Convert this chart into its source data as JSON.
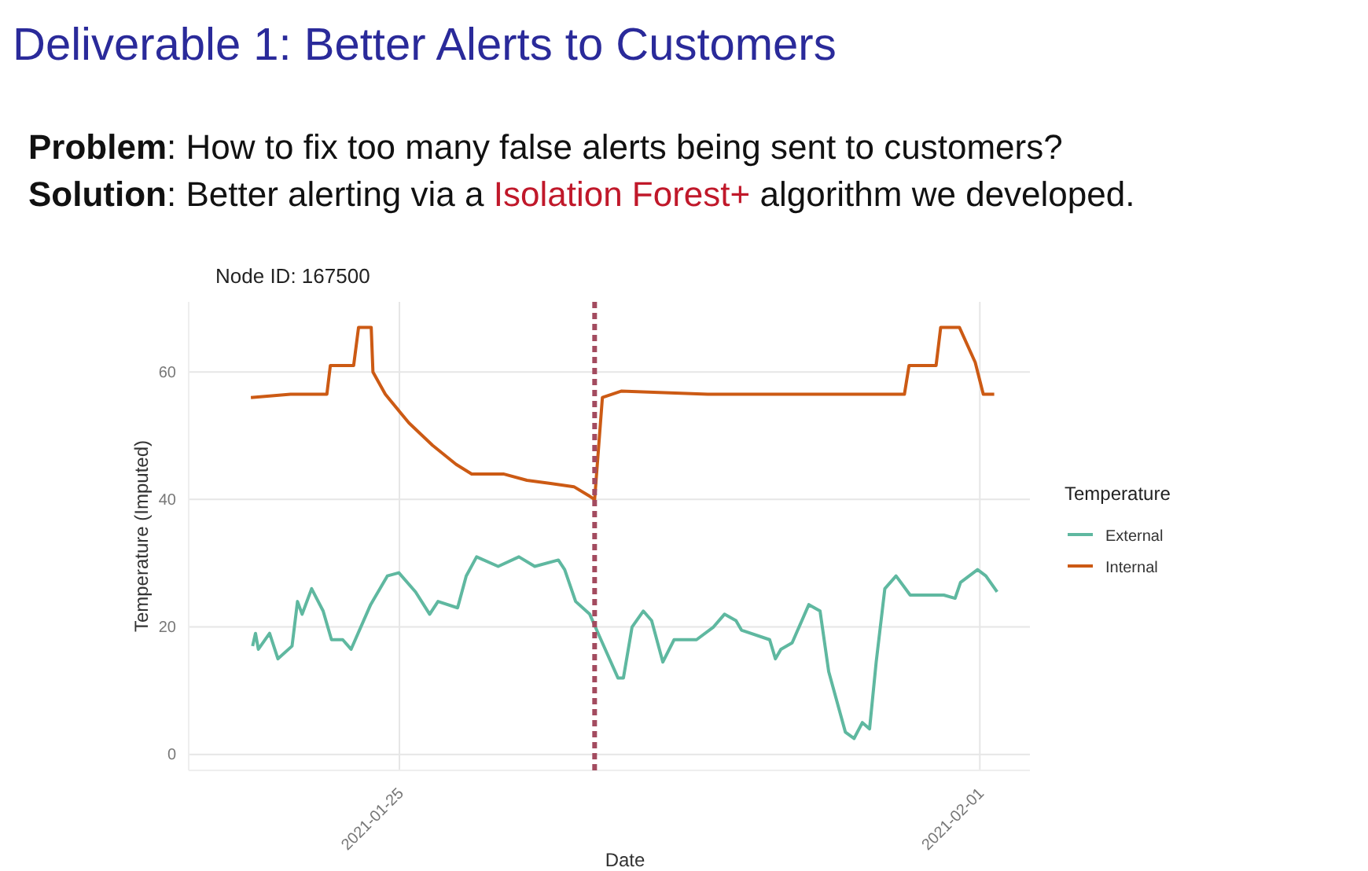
{
  "chart_data": {
    "type": "line",
    "title": "Deliverable 1: Better Alerts to Customers",
    "subtitle": "Node ID: 167500",
    "annotations": [
      "Problem",
      ": How to fix too many false alerts being sent to customers?",
      "Solution",
      ": Better alerting via a",
      "Isolation Forest+",
      "algorithm we developed."
    ],
    "xlabel": "Date",
    "ylabel": "Temperature (Imputed)",
    "legend_title": "Temperature",
    "xlim": [
      "2021-01-22T11:00",
      "2021-02-01T14:30"
    ],
    "xticks": [
      {
        "value": "2021-01-25",
        "label": "2021-01-25"
      },
      {
        "value": "2021-02-01",
        "label": "2021-02-01"
      }
    ],
    "ylim": [
      -2.5,
      71
    ],
    "yticks": [
      0,
      20,
      40,
      60
    ],
    "grid": true,
    "legend": "right",
    "marker": "none",
    "line_style": "solid",
    "ref_lines": [
      {
        "axis": "x",
        "value": "2021-01-27T08:30",
        "label": null,
        "color": "#a34b5f",
        "line_style": "dotted"
      }
    ],
    "series": [
      {
        "name": "External",
        "color": "#5fb8a0",
        "x": [
          "2021-01-23T05:30",
          "2021-01-23T06:20",
          "2021-01-23T07:10",
          "2021-01-23T10:25",
          "2021-01-23T12:50",
          "2021-01-23T16:55",
          "2021-01-23T18:30",
          "2021-01-23T19:50",
          "2021-01-23T22:35",
          "2021-01-24T01:55",
          "2021-01-24T04:20",
          "2021-01-24T07:35",
          "2021-01-24T10:00",
          "2021-01-24T15:40",
          "2021-01-24T20:30",
          "2021-01-24T23:50",
          "2021-01-25T04:40",
          "2021-01-25T08:45",
          "2021-01-25T11:10",
          "2021-01-25T16:50",
          "2021-01-25T19:20",
          "2021-01-25T22:20",
          "2021-01-26T04:35",
          "2021-01-26T10:35",
          "2021-01-26T15:10",
          "2021-01-26T22:00",
          "2021-01-26T23:50",
          "2021-01-27T03:00",
          "2021-01-27T07:05",
          "2021-01-27T10:20",
          "2021-01-27T15:15",
          "2021-01-27T16:50",
          "2021-01-27T19:20",
          "2021-01-27T22:35",
          "2021-01-28T01:00",
          "2021-01-28T04:15",
          "2021-01-28T07:30",
          "2021-01-28T14:00",
          "2021-01-28T18:55",
          "2021-01-28T22:05",
          "2021-01-29T01:25",
          "2021-01-29T03:00",
          "2021-01-29T11:10",
          "2021-01-29T12:50",
          "2021-01-29T14:25",
          "2021-01-29T17:40",
          "2021-01-29T22:30",
          "2021-01-30T01:45",
          "2021-01-30T04:15",
          "2021-01-30T09:05",
          "2021-01-30T11:35",
          "2021-01-30T14:00",
          "2021-01-30T16:05",
          "2021-01-30T18:00",
          "2021-01-30T20:30",
          "2021-01-30T23:45",
          "2021-01-31T03:50",
          "2021-01-31T13:35",
          "2021-01-31T16:50",
          "2021-01-31T18:25",
          "2021-01-31T23:20",
          "2021-02-01T01:45",
          "2021-02-01T05:00"
        ],
        "values": [
          17,
          19,
          16.5,
          19,
          15,
          17,
          24,
          22,
          26,
          22.5,
          18,
          18,
          16.5,
          23.5,
          28,
          28.5,
          25.5,
          22,
          24,
          23,
          28,
          31,
          29.5,
          31,
          29.5,
          30.5,
          29,
          24,
          22,
          18,
          12,
          12,
          20,
          22.5,
          21,
          14.5,
          18,
          18,
          20,
          22,
          21,
          19.5,
          18,
          15,
          16.5,
          17.5,
          23.5,
          22.5,
          13,
          3.5,
          2.5,
          5,
          4,
          14.5,
          26,
          28,
          25,
          25,
          24.5,
          27,
          29,
          28,
          25.5
        ]
      },
      {
        "name": "Internal",
        "color": "#cc5a14",
        "x": [
          "2021-01-23T05:00",
          "2021-01-23T16:30",
          "2021-01-24T03:00",
          "2021-01-24T04:00",
          "2021-01-24T10:45",
          "2021-01-24T12:10",
          "2021-01-24T15:50",
          "2021-01-24T16:20",
          "2021-01-24T19:55",
          "2021-01-25T02:45",
          "2021-01-25T09:35",
          "2021-01-25T16:25",
          "2021-01-25T20:55",
          "2021-01-26T01:30",
          "2021-01-26T06:05",
          "2021-01-26T12:55",
          "2021-01-26T19:45",
          "2021-01-27T02:30",
          "2021-01-27T07:05",
          "2021-01-27T08:30",
          "2021-01-27T10:45",
          "2021-01-27T16:10",
          "2021-01-28T17:15",
          "2021-01-29T16:00",
          "2021-01-31T02:10",
          "2021-01-31T03:30",
          "2021-01-31T11:20",
          "2021-01-31T12:40",
          "2021-01-31T18:05",
          "2021-01-31T22:40",
          "2021-02-01T01:00",
          "2021-02-01T04:10"
        ],
        "values": [
          56,
          56.5,
          56.5,
          61,
          61,
          67,
          67,
          60,
          56.5,
          52,
          48.5,
          45.5,
          44,
          44,
          44,
          43,
          42.5,
          42,
          40.5,
          40,
          56,
          57,
          56.5,
          56.5,
          56.5,
          61,
          61,
          67,
          67,
          61.5,
          56.5,
          56.5
        ]
      }
    ]
  }
}
